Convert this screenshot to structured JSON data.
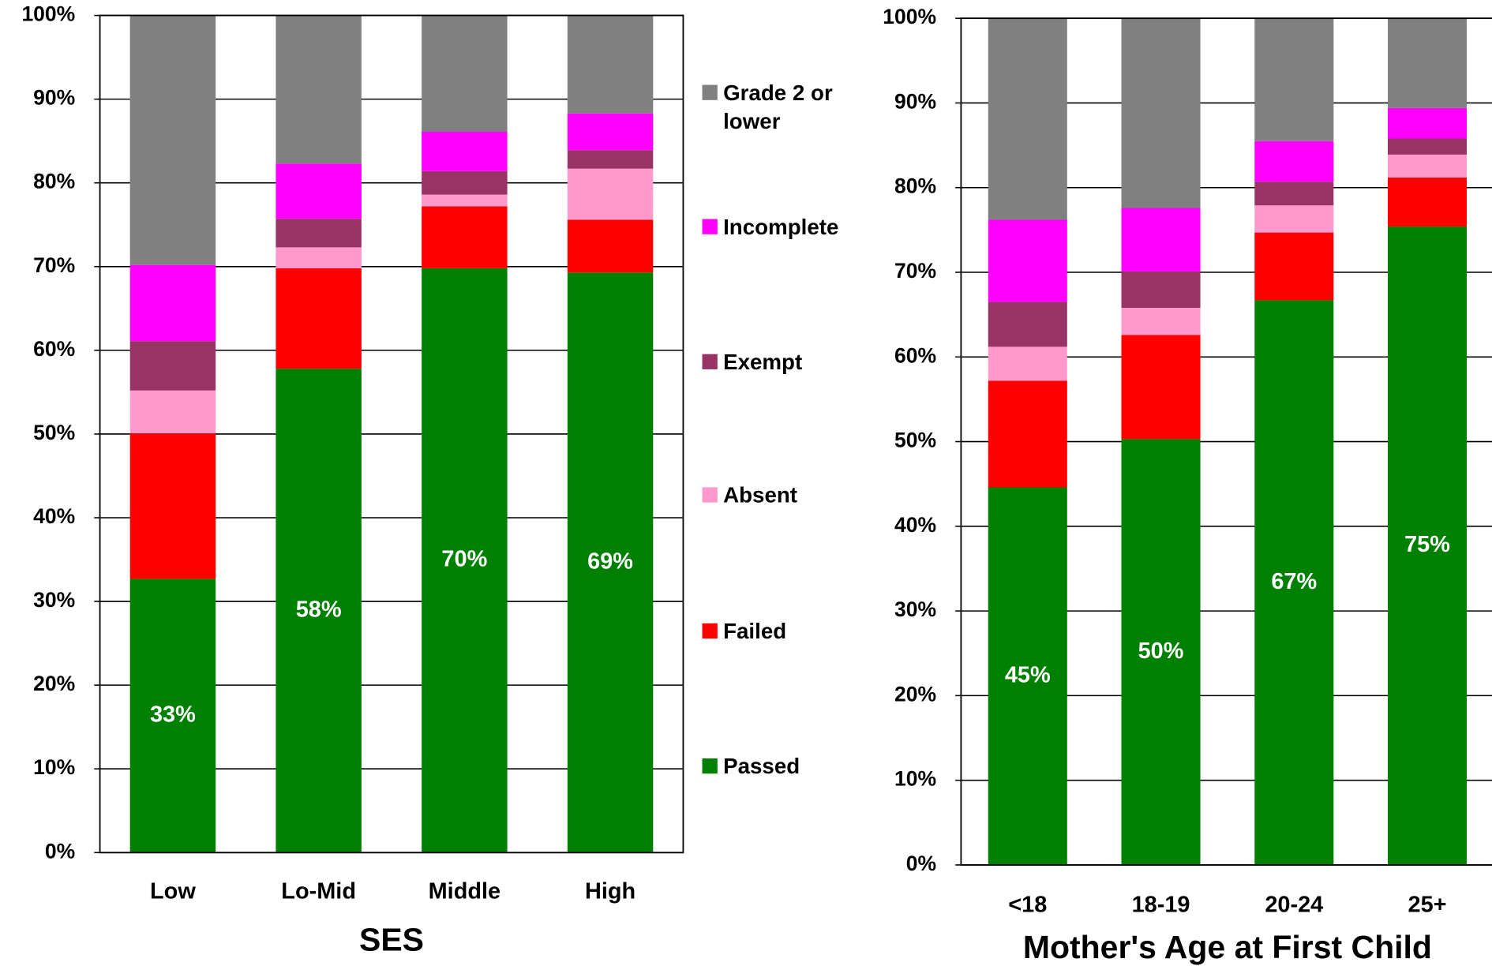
{
  "chart_data": [
    {
      "type": "bar",
      "stacked": true,
      "legend": "right",
      "xlabel": "SES",
      "categories": [
        "Low",
        "Lo-Mid",
        "Middle",
        "High"
      ],
      "ylim": [
        0,
        100
      ],
      "yticks": [
        {
          "value": 0,
          "label": "0%"
        },
        {
          "value": 10,
          "label": "10%"
        },
        {
          "value": 20,
          "label": "20%"
        },
        {
          "value": 30,
          "label": "30%"
        },
        {
          "value": 40,
          "label": "40%"
        },
        {
          "value": 50,
          "label": "50%"
        },
        {
          "value": 60,
          "label": "60%"
        },
        {
          "value": 70,
          "label": "70%"
        },
        {
          "value": 80,
          "label": "80%"
        },
        {
          "value": 90,
          "label": "90%"
        },
        {
          "value": 100,
          "label": "100%"
        }
      ],
      "grid": true,
      "series": [
        {
          "name": "Passed",
          "color": "#008000",
          "values": [
            32.7,
            57.8,
            69.8,
            69.3
          ],
          "value_labels": [
            "33%",
            "58%",
            "70%",
            "69%"
          ]
        },
        {
          "name": "Failed",
          "color": "#ff0000",
          "values": [
            17.4,
            12.0,
            7.4,
            6.3
          ]
        },
        {
          "name": "Absent",
          "color": "#ff99cc",
          "values": [
            5.1,
            2.5,
            1.4,
            6.1
          ]
        },
        {
          "name": "Exempt",
          "color": "#993366",
          "values": [
            5.9,
            3.4,
            2.8,
            2.2
          ]
        },
        {
          "name": "Incomplete",
          "color": "#ff00ff",
          "values": [
            9.1,
            6.6,
            4.7,
            4.4
          ]
        },
        {
          "name": "Grade 2 or lower",
          "color": "#808080",
          "values": [
            29.8,
            17.7,
            13.9,
            11.7
          ]
        }
      ]
    },
    {
      "type": "bar",
      "stacked": true,
      "xlabel": "Mother's Age at First Child",
      "categories": [
        "<18",
        "18-19",
        "20-24",
        "25+"
      ],
      "ylim": [
        0,
        100
      ],
      "yticks": [
        {
          "value": 0,
          "label": "0%"
        },
        {
          "value": 10,
          "label": "10%"
        },
        {
          "value": 20,
          "label": "20%"
        },
        {
          "value": 30,
          "label": "30%"
        },
        {
          "value": 40,
          "label": "40%"
        },
        {
          "value": 50,
          "label": "50%"
        },
        {
          "value": 60,
          "label": "60%"
        },
        {
          "value": 70,
          "label": "70%"
        },
        {
          "value": 80,
          "label": "80%"
        },
        {
          "value": 90,
          "label": "90%"
        },
        {
          "value": 100,
          "label": "100%"
        }
      ],
      "grid": true,
      "series": [
        {
          "color": "#008000",
          "values": [
            44.6,
            50.3,
            66.7,
            75.4
          ],
          "value_labels": [
            "45%",
            "50%",
            "67%",
            "75%"
          ]
        },
        {
          "color": "#ff0000",
          "values": [
            12.6,
            12.3,
            8.0,
            5.8
          ]
        },
        {
          "color": "#ff99cc",
          "values": [
            4.0,
            3.2,
            3.2,
            2.7
          ]
        },
        {
          "color": "#993366",
          "values": [
            5.3,
            4.3,
            2.8,
            1.9
          ]
        },
        {
          "color": "#ff00ff",
          "values": [
            9.7,
            7.5,
            4.8,
            3.6
          ]
        },
        {
          "color": "#808080",
          "values": [
            23.8,
            22.4,
            14.5,
            10.6
          ]
        }
      ]
    }
  ]
}
